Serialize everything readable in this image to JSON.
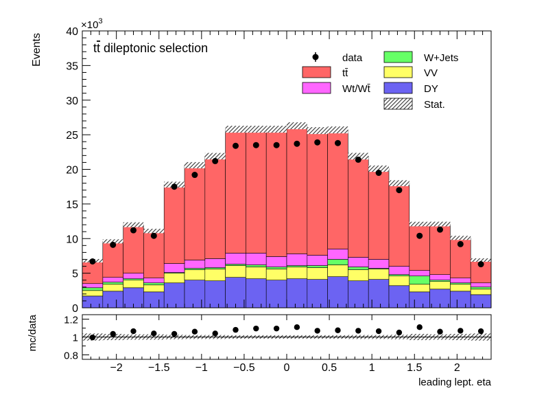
{
  "chart_data": [
    {
      "type": "bar",
      "stacked": true,
      "title": "",
      "annotation_prefix": "t",
      "annotation_bar": "t",
      "annotation_suffix": " dileptonic selection",
      "ylabel": "Events",
      "xlabel": "",
      "exponent_label": "×10",
      "exponent_power": "3",
      "ylim": [
        0,
        40000
      ],
      "xlim": [
        -2.4,
        2.4
      ],
      "yticks": [
        "0",
        "5",
        "10",
        "15",
        "20",
        "25",
        "30",
        "35",
        "40"
      ],
      "xticks": [],
      "bin_edges": [
        -2.4,
        -2.16,
        -1.92,
        -1.68,
        -1.44,
        -1.2,
        -0.96,
        -0.72,
        -0.48,
        -0.24,
        0.0,
        0.24,
        0.48,
        0.72,
        0.96,
        1.2,
        1.44,
        1.68,
        1.92,
        2.16,
        2.4
      ],
      "series": [
        {
          "name": "DY",
          "color": "#6c63f2",
          "values": [
            1700,
            2400,
            2900,
            2300,
            3600,
            4000,
            3900,
            4400,
            4200,
            4000,
            4200,
            4100,
            4500,
            3900,
            4100,
            3200,
            2300,
            2700,
            2400,
            1900
          ]
        },
        {
          "name": "VV",
          "color": "#ffff66",
          "values": [
            800,
            1000,
            1100,
            1000,
            1400,
            1500,
            1700,
            1700,
            1700,
            1600,
            1700,
            1700,
            1700,
            1600,
            1500,
            1400,
            1100,
            1100,
            1000,
            800
          ]
        },
        {
          "name": "W+Jets",
          "color": "#66ff66",
          "values": [
            400,
            300,
            200,
            300,
            100,
            200,
            200,
            200,
            300,
            300,
            200,
            300,
            800,
            400,
            100,
            200,
            1200,
            200,
            200,
            300
          ]
        },
        {
          "name": "Wt/Wt̄",
          "color": "#ff66ff",
          "values": [
            600,
            700,
            800,
            700,
            1300,
            1200,
            1300,
            1600,
            1700,
            1500,
            1700,
            1500,
            1500,
            1400,
            1300,
            1200,
            800,
            800,
            700,
            600
          ]
        },
        {
          "name": "tt̄",
          "color": "#ff6666",
          "values": [
            3300,
            5200,
            7000,
            6800,
            11400,
            13700,
            14800,
            17900,
            17900,
            18400,
            18500,
            18000,
            17200,
            14600,
            13100,
            12000,
            6700,
            7300,
            5800,
            3300
          ]
        }
      ],
      "data": {
        "name": "data",
        "values": [
          6700,
          9100,
          11200,
          10400,
          17500,
          19200,
          21200,
          23400,
          23500,
          23500,
          23700,
          23900,
          23800,
          21400,
          19500,
          17000,
          10400,
          11300,
          9200,
          6300
        ]
      },
      "uncertainty": {
        "name": "Stat.",
        "values": [
          250,
          300,
          350,
          320,
          420,
          450,
          470,
          500,
          500,
          500,
          500,
          500,
          500,
          480,
          460,
          430,
          330,
          340,
          300,
          250
        ]
      },
      "legend_placement": "top-right",
      "grid": false
    },
    {
      "type": "scatter",
      "title": "",
      "ylabel": "mc/data",
      "xlabel": "leading lept. eta",
      "ylim": [
        0.75,
        1.25
      ],
      "xlim": [
        -2.4,
        2.4
      ],
      "yticks": [
        "0.8",
        "1",
        "1.2"
      ],
      "xticks": [
        "−2",
        "−1.5",
        "−1",
        "−0.5",
        "0",
        "0.5",
        "1",
        "1.5",
        "2"
      ],
      "x": [
        -2.28,
        -2.04,
        -1.8,
        -1.56,
        -1.32,
        -1.08,
        -0.84,
        -0.6,
        -0.36,
        -0.12,
        0.12,
        0.36,
        0.6,
        0.84,
        1.08,
        1.32,
        1.56,
        1.8,
        2.04,
        2.28
      ],
      "y": [
        0.995,
        1.035,
        1.065,
        1.04,
        1.035,
        1.06,
        1.04,
        1.08,
        1.095,
        1.095,
        1.11,
        1.07,
        1.075,
        1.07,
        1.065,
        1.05,
        1.11,
        1.06,
        1.07,
        1.065
      ],
      "band_halfwidth": [
        0.04,
        0.035,
        0.03,
        0.03,
        0.025,
        0.022,
        0.022,
        0.02,
        0.02,
        0.02,
        0.02,
        0.02,
        0.02,
        0.022,
        0.022,
        0.025,
        0.035,
        0.03,
        0.035,
        0.04
      ],
      "grid": false
    }
  ]
}
